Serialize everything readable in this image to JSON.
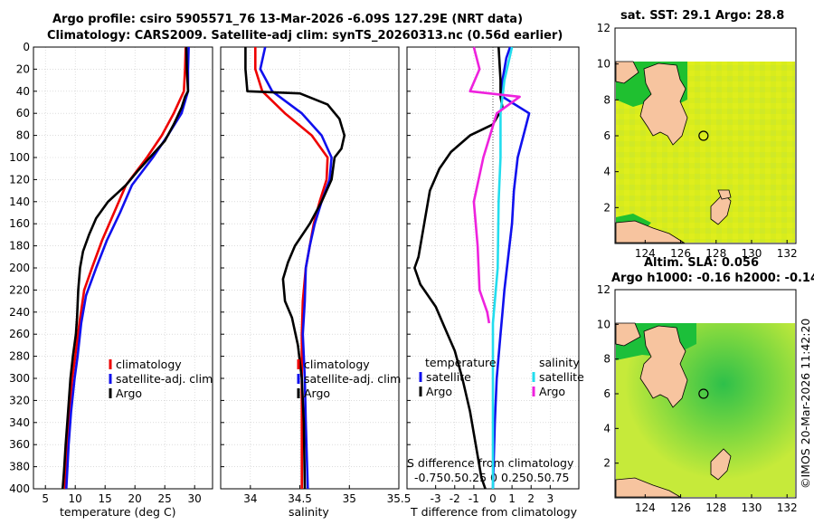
{
  "header": {
    "title_line1": "Argo profile: csiro 5905571_76 13-Mar-2026 -6.09S 127.29E (NRT data)",
    "title_line2": "Climatology: CARS2009. Satellite-adj clim: synTS_20260313.nc (0.56d earlier)"
  },
  "side_stamp": "©IMOS 20-Mar-2026 11:42:20",
  "colors": {
    "climatology": "#ee0000",
    "satellite": "#1010ee",
    "argo": "#000000",
    "sat_salinity": "#22ddee",
    "argo_salinity": "#ee22dd",
    "land": "#f7c49f"
  },
  "chart_data": [
    {
      "type": "line",
      "name": "temperature-profile",
      "xlabel": "temperature (deg C)",
      "ylabel": "",
      "xlim": [
        3,
        33
      ],
      "ylim": [
        400,
        0
      ],
      "xticks": [
        5,
        10,
        15,
        20,
        25,
        30
      ],
      "yticks": [
        0,
        20,
        40,
        60,
        80,
        100,
        120,
        140,
        160,
        180,
        200,
        220,
        240,
        260,
        280,
        300,
        320,
        340,
        360,
        380,
        400
      ],
      "grid": true,
      "legend": {
        "placement": "lower-right",
        "entries": [
          "climatology",
          "satellite-adj. clim",
          "Argo"
        ]
      },
      "series": [
        {
          "name": "climatology",
          "color": "#ee0000",
          "points": [
            [
              28.5,
              0
            ],
            [
              28.4,
              20
            ],
            [
              28.2,
              40
            ],
            [
              26.5,
              60
            ],
            [
              24.5,
              80
            ],
            [
              22,
              100
            ],
            [
              18.5,
              125
            ],
            [
              16.5,
              150
            ],
            [
              14.5,
              175
            ],
            [
              12.8,
              200
            ],
            [
              11.5,
              220
            ],
            [
              10.7,
              250
            ],
            [
              10.0,
              280
            ],
            [
              9.5,
              300
            ],
            [
              9.0,
              330
            ],
            [
              8.6,
              360
            ],
            [
              8.3,
              400
            ]
          ]
        },
        {
          "name": "satellite-adj. clim",
          "color": "#1010ee",
          "points": [
            [
              29,
              0
            ],
            [
              28.9,
              20
            ],
            [
              28.9,
              40
            ],
            [
              27.8,
              60
            ],
            [
              25.5,
              80
            ],
            [
              23,
              100
            ],
            [
              19.5,
              125
            ],
            [
              17.5,
              150
            ],
            [
              15.3,
              175
            ],
            [
              13.5,
              200
            ],
            [
              11.8,
              225
            ],
            [
              11,
              250
            ],
            [
              10.4,
              280
            ],
            [
              9.9,
              300
            ],
            [
              9.3,
              330
            ],
            [
              8.9,
              360
            ],
            [
              8.5,
              400
            ]
          ]
        },
        {
          "name": "Argo",
          "color": "#000000",
          "points": [
            [
              28.6,
              0
            ],
            [
              28.7,
              20
            ],
            [
              28.9,
              40
            ],
            [
              28.4,
              45
            ],
            [
              27.8,
              55
            ],
            [
              26.5,
              70
            ],
            [
              25,
              85
            ],
            [
              22.5,
              100
            ],
            [
              20.5,
              112
            ],
            [
              18.5,
              125
            ],
            [
              15.5,
              140
            ],
            [
              13.5,
              155
            ],
            [
              12.3,
              170
            ],
            [
              11.3,
              185
            ],
            [
              10.8,
              200
            ],
            [
              10.5,
              220
            ],
            [
              10.3,
              245
            ],
            [
              10.1,
              260
            ],
            [
              9.6,
              280
            ],
            [
              9.2,
              300
            ],
            [
              8.8,
              330
            ],
            [
              8.4,
              360
            ],
            [
              8.1,
              385
            ],
            [
              7.9,
              400
            ]
          ]
        }
      ]
    },
    {
      "type": "line",
      "name": "salinity-profile",
      "xlabel": "salinity",
      "xlim": [
        33.7,
        35.5
      ],
      "ylim": [
        400,
        0
      ],
      "xticks": [
        34,
        34.5,
        35,
        35.5
      ],
      "grid": true,
      "legend": {
        "placement": "lower-right",
        "entries": [
          "climatology",
          "satellite-adj. clim",
          "Argo"
        ]
      },
      "series": [
        {
          "name": "climatology",
          "color": "#ee0000",
          "points": [
            [
              34.05,
              0
            ],
            [
              34.05,
              20
            ],
            [
              34.12,
              40
            ],
            [
              34.35,
              60
            ],
            [
              34.62,
              80
            ],
            [
              34.78,
              100
            ],
            [
              34.77,
              120
            ],
            [
              34.7,
              140
            ],
            [
              34.64,
              160
            ],
            [
              34.6,
              180
            ],
            [
              34.56,
              200
            ],
            [
              34.53,
              230
            ],
            [
              34.52,
              260
            ],
            [
              34.52,
              300
            ],
            [
              34.52,
              340
            ],
            [
              34.52,
              400
            ]
          ]
        },
        {
          "name": "satellite-adj. clim",
          "color": "#1010ee",
          "points": [
            [
              34.15,
              0
            ],
            [
              34.1,
              20
            ],
            [
              34.22,
              40
            ],
            [
              34.52,
              60
            ],
            [
              34.72,
              80
            ],
            [
              34.82,
              100
            ],
            [
              34.8,
              120
            ],
            [
              34.72,
              140
            ],
            [
              34.65,
              160
            ],
            [
              34.6,
              180
            ],
            [
              34.56,
              200
            ],
            [
              34.55,
              230
            ],
            [
              34.53,
              260
            ],
            [
              34.55,
              300
            ],
            [
              34.56,
              340
            ],
            [
              34.58,
              400
            ]
          ]
        },
        {
          "name": "Argo",
          "color": "#000000",
          "points": [
            [
              33.95,
              0
            ],
            [
              33.95,
              20
            ],
            [
              33.97,
              40
            ],
            [
              34.5,
              42
            ],
            [
              34.78,
              52
            ],
            [
              34.9,
              65
            ],
            [
              34.95,
              80
            ],
            [
              34.92,
              92
            ],
            [
              34.85,
              100
            ],
            [
              34.82,
              120
            ],
            [
              34.72,
              140
            ],
            [
              34.6,
              160
            ],
            [
              34.45,
              180
            ],
            [
              34.38,
              195
            ],
            [
              34.33,
              210
            ],
            [
              34.35,
              230
            ],
            [
              34.42,
              245
            ],
            [
              34.48,
              270
            ],
            [
              34.52,
              300
            ],
            [
              34.54,
              340
            ],
            [
              34.55,
              400
            ]
          ]
        }
      ]
    },
    {
      "type": "line",
      "name": "difference-profile",
      "xlabel": "T difference from climatology",
      "top_label_line1": "S difference from climatology",
      "top_label_line2": "-0.750.50.25 0  0.250.50.75",
      "xlim": [
        -4.5,
        4.5
      ],
      "ylim": [
        400,
        0
      ],
      "xticks": [
        -3,
        -2,
        -1,
        0,
        1,
        2,
        3
      ],
      "x_tick_labels": [
        "-3",
        "-2",
        "-1",
        "0",
        "1",
        "2",
        "3"
      ],
      "grid": true,
      "legend": {
        "placement": "lower-center",
        "left_title": "temperature",
        "right_title": "salinity",
        "entries": [
          "satellite",
          "Argo",
          "satellite",
          "Argo"
        ]
      },
      "series": [
        {
          "name": "temperature satellite",
          "color": "#1010ee",
          "points": [
            [
              0.9,
              0
            ],
            [
              0.7,
              10
            ],
            [
              0.5,
              30
            ],
            [
              0.5,
              45
            ],
            [
              1.9,
              60
            ],
            [
              1.6,
              80
            ],
            [
              1.3,
              100
            ],
            [
              1.1,
              130
            ],
            [
              1.0,
              160
            ],
            [
              0.8,
              190
            ],
            [
              0.6,
              220
            ],
            [
              0.5,
              240
            ],
            [
              0.4,
              260
            ],
            [
              0.2,
              300
            ],
            [
              0.1,
              340
            ],
            [
              0.0,
              400
            ]
          ]
        },
        {
          "name": "temperature Argo",
          "color": "#000000",
          "points": [
            [
              0.3,
              0
            ],
            [
              0.4,
              30
            ],
            [
              0.4,
              45
            ],
            [
              0.5,
              55
            ],
            [
              0.0,
              70
            ],
            [
              -1.2,
              80
            ],
            [
              -2.2,
              95
            ],
            [
              -2.8,
              110
            ],
            [
              -3.3,
              130
            ],
            [
              -3.6,
              160
            ],
            [
              -3.9,
              190
            ],
            [
              -4.1,
              200
            ],
            [
              -3.8,
              215
            ],
            [
              -3.0,
              235
            ],
            [
              -2.5,
              255
            ],
            [
              -2.0,
              275
            ],
            [
              -1.6,
              300
            ],
            [
              -1.2,
              330
            ],
            [
              -0.9,
              360
            ],
            [
              -0.6,
              390
            ],
            [
              -0.4,
              400
            ]
          ]
        },
        {
          "name": "salinity satellite",
          "color": "#22ddee",
          "points": [
            [
              1.0,
              0
            ],
            [
              0.6,
              30
            ],
            [
              0.4,
              60
            ],
            [
              0.4,
              100
            ],
            [
              0.3,
              140
            ],
            [
              0.25,
              200
            ],
            [
              0.0,
              250
            ],
            [
              0.0,
              400
            ]
          ]
        },
        {
          "name": "salinity Argo",
          "color": "#ee22dd",
          "points": [
            [
              -1.0,
              0
            ],
            [
              -0.7,
              20
            ],
            [
              -1.2,
              40
            ],
            [
              1.4,
              45
            ],
            [
              0.2,
              60
            ],
            [
              -0.5,
              100
            ],
            [
              -1.0,
              140
            ],
            [
              -0.8,
              180
            ],
            [
              -0.7,
              220
            ],
            [
              -0.3,
              240
            ],
            [
              -0.2,
              250
            ]
          ]
        }
      ]
    },
    {
      "type": "heatmap",
      "name": "sst-map",
      "title": "sat. SST: 29.1 Argo: 28.8",
      "xlim": [
        122.3,
        132.5
      ],
      "ylim": [
        0,
        12
      ],
      "xticks": [
        124,
        126,
        128,
        130,
        132
      ],
      "yticks": [
        2,
        4,
        6,
        8,
        10,
        12
      ],
      "marker": {
        "lon": 127.29,
        "lat": 6.0
      }
    },
    {
      "type": "heatmap",
      "name": "sla-map",
      "title_line1": "Altim. SLA: 0.056",
      "title_line2": "Argo h1000: -0.16 h2000: -0.14",
      "xlim": [
        122.3,
        132.5
      ],
      "ylim": [
        0,
        12
      ],
      "xticks": [
        124,
        126,
        128,
        130,
        132
      ],
      "yticks": [
        2,
        4,
        6,
        8,
        10,
        12
      ],
      "marker": {
        "lon": 127.29,
        "lat": 6.0
      }
    }
  ]
}
